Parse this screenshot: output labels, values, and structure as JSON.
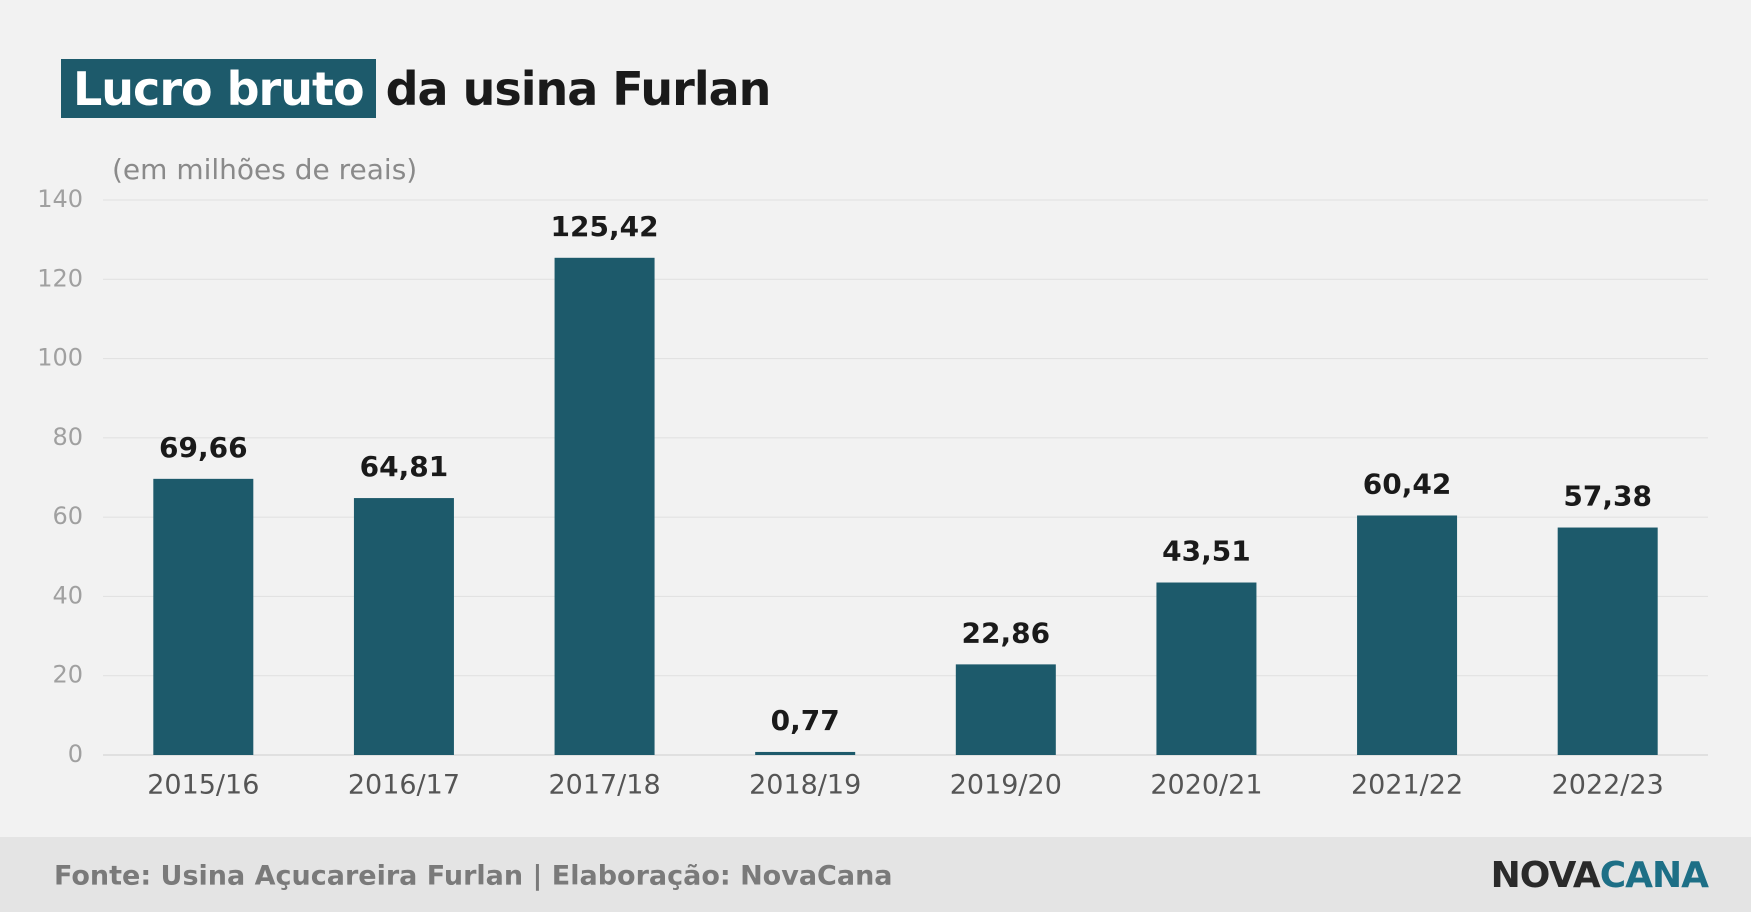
{
  "chart_data": {
    "type": "bar",
    "title_highlight": "Lucro bruto",
    "title": "da usina Furlan",
    "subtitle": "(em milhões de reais)",
    "categories": [
      "2015/16",
      "2016/17",
      "2017/18",
      "2018/19",
      "2019/20",
      "2020/21",
      "2021/22",
      "2022/23"
    ],
    "values": [
      69.66,
      64.81,
      125.42,
      0.77,
      22.86,
      43.51,
      60.42,
      57.38
    ],
    "value_labels": [
      "69,66",
      "64,81",
      "125,42",
      "0,77",
      "22,86",
      "43,51",
      "60,42",
      "57,38"
    ],
    "color": "#1d5a6b",
    "ylim": [
      0,
      140
    ],
    "yticks": [
      0,
      20,
      40,
      60,
      80,
      100,
      120,
      140
    ],
    "grid": true,
    "source": "Fonte: Usina Açucareira Furlan | Elaboração: NovaCana",
    "logo": [
      "NOVA",
      "CANA"
    ]
  }
}
